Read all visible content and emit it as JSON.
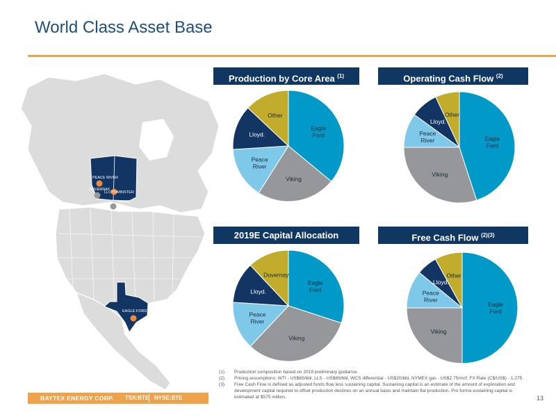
{
  "page": {
    "title": "World Class Asset Base",
    "page_number": "13"
  },
  "footer": {
    "brand": "BAYTEX ENERGY CORP.",
    "ticker_tsx": "TSX:BTE",
    "ticker_nyse": "NYSE:BTE"
  },
  "map_labels": {
    "peace_river": "PEACE RIVER",
    "duvernay": "DUVERNAY",
    "lloydminster": "LLOYDMINSTER",
    "viking": "VIKING",
    "eagle_ford": "EAGLE FORD"
  },
  "colors": {
    "navy": "#0f3761",
    "accent_orange": "#f0a24a",
    "marker_orange": "#f0893a",
    "marker_grey": "#9a9a9a",
    "eagle_ford": "#0099c8",
    "viking": "#95979b",
    "peace_river": "#7ec8ea",
    "lloydminster": "#123563",
    "other": "#c2ac2c"
  },
  "footnotes": [
    {
      "num": "(1)",
      "text": "Production composition based on 2019 preliminary guidance."
    },
    {
      "num": "(2)",
      "text": "Pricing assumptions: WTI - US$65/bbl, LLS - US$69/bbl, WCS differential - US$20/bbl, NYMEX gas - US$2.75/mcf, FX Rate (C$/US$) - 1.275."
    },
    {
      "num": "(3)",
      "text": "Free Cash Flow is defined as adjusted funds flow less sustaining capital. Sustaining capital is an estimate of the amount of exploration and development capital required to offset production declines on an annual basis and maintain flat production. Pro forma sustaining capital is estimated at $575 million."
    }
  ],
  "chart_data": [
    {
      "type": "pie",
      "title": "Production by Core Area",
      "title_note": "(1)",
      "series": [
        {
          "name": "Eagle Ford",
          "label": "Eagle\nFord",
          "value": 36,
          "color": "#0099c8"
        },
        {
          "name": "Viking",
          "label": "Viking",
          "value": 23,
          "color": "#95979b"
        },
        {
          "name": "Peace River",
          "label": "Peace\nRiver",
          "value": 15,
          "color": "#7ec8ea"
        },
        {
          "name": "Lloyd.",
          "label": "Lloyd.",
          "value": 13,
          "color": "#123563"
        },
        {
          "name": "Other",
          "label": "Other",
          "value": 13,
          "color": "#c2ac2c"
        }
      ]
    },
    {
      "type": "pie",
      "title": "Operating Cash Flow",
      "title_note": "(2)",
      "series": [
        {
          "name": "Eagle Ford",
          "label": "Eagle\nFord",
          "value": 45,
          "color": "#0099c8"
        },
        {
          "name": "Viking",
          "label": "Viking",
          "value": 30,
          "color": "#95979b"
        },
        {
          "name": "Peace River",
          "label": "Peace\nRiver",
          "value": 10,
          "color": "#7ec8ea"
        },
        {
          "name": "Lloyd.",
          "label": "Lloyd.",
          "value": 8,
          "color": "#123563"
        },
        {
          "name": "Other",
          "label": "Other",
          "value": 7,
          "color": "#c2ac2c"
        }
      ]
    },
    {
      "type": "pie",
      "title": "2019E Capital Allocation",
      "title_note": "",
      "series": [
        {
          "name": "Eagle Ford",
          "label": "Eagle\nFord",
          "value": 30,
          "color": "#0099c8"
        },
        {
          "name": "Viking",
          "label": "Viking",
          "value": 32,
          "color": "#95979b"
        },
        {
          "name": "Peace River",
          "label": "Peace\nRiver",
          "value": 14,
          "color": "#7ec8ea"
        },
        {
          "name": "Lloyd.",
          "label": "Lloyd.",
          "value": 12,
          "color": "#123563"
        },
        {
          "name": "Duvernay",
          "label": "Duvernay",
          "value": 12,
          "color": "#c2ac2c"
        }
      ]
    },
    {
      "type": "pie",
      "title": "Free Cash Flow",
      "title_note": "(2)(3)",
      "series": [
        {
          "name": "Eagle Ford",
          "label": "Eagle\nFord",
          "value": 50,
          "color": "#0099c8"
        },
        {
          "name": "Viking",
          "label": "Viking",
          "value": 25,
          "color": "#95979b"
        },
        {
          "name": "Peace River",
          "label": "Peace\nRiver",
          "value": 11,
          "color": "#7ec8ea"
        },
        {
          "name": "Lloyd.",
          "label": "Lloyd.",
          "value": 6,
          "color": "#123563"
        },
        {
          "name": "Other",
          "label": "Other",
          "value": 8,
          "color": "#c2ac2c"
        }
      ]
    }
  ]
}
